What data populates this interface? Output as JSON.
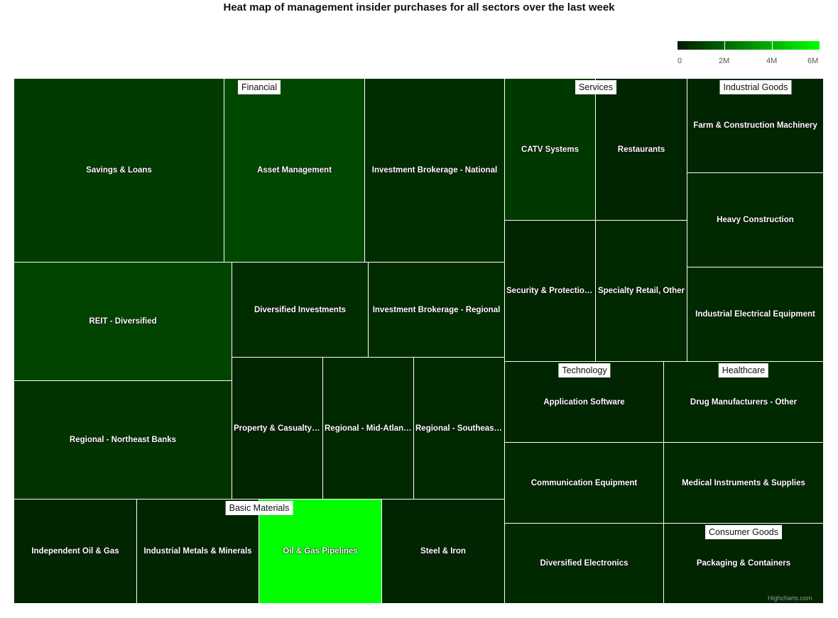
{
  "chart_data": {
    "type": "heatmap",
    "title": "Heat map of management insider purchases for all sectors over the last week",
    "color_axis": {
      "min": 0,
      "max": 6000000,
      "min_color": "#001a00",
      "max_color": "#00ff00",
      "tick_labels": [
        "0",
        "2M",
        "4M",
        "6M"
      ],
      "tick_values": [
        0,
        2000000,
        4000000,
        6000000
      ]
    },
    "sectors": [
      {
        "name": "Financial",
        "children": [
          {
            "name": "Savings & Loans",
            "value": 900000
          },
          {
            "name": "Asset Management",
            "value": 1200000
          },
          {
            "name": "Investment Brokerage - National",
            "value": 500000
          },
          {
            "name": "REIT - Diversified",
            "value": 1100000
          },
          {
            "name": "Diversified Investments",
            "value": 500000
          },
          {
            "name": "Investment Brokerage - Regional",
            "value": 500000
          },
          {
            "name": "Regional - Northeast Banks",
            "value": 700000
          },
          {
            "name": "Property & Casualty Insurance",
            "value": 300000
          },
          {
            "name": "Regional - Mid-Atlantic Banks",
            "value": 400000
          },
          {
            "name": "Regional - Southeast Banks",
            "value": 400000
          }
        ]
      },
      {
        "name": "Basic Materials",
        "children": [
          {
            "name": "Independent Oil & Gas",
            "value": 300000
          },
          {
            "name": "Industrial Metals & Minerals",
            "value": 300000
          },
          {
            "name": "Oil & Gas Pipelines",
            "value": 6000000
          },
          {
            "name": "Steel & Iron",
            "value": 300000
          }
        ]
      },
      {
        "name": "Services",
        "children": [
          {
            "name": "CATV Systems",
            "value": 800000
          },
          {
            "name": "Restaurants",
            "value": 300000
          },
          {
            "name": "Security & Protection Services",
            "value": 300000
          },
          {
            "name": "Specialty Retail, Other",
            "value": 400000
          }
        ]
      },
      {
        "name": "Industrial Goods",
        "children": [
          {
            "name": "Farm & Construction Machinery",
            "value": 300000
          },
          {
            "name": "Heavy Construction",
            "value": 400000
          },
          {
            "name": "Industrial Electrical Equipment",
            "value": 400000
          }
        ]
      },
      {
        "name": "Technology",
        "children": [
          {
            "name": "Application Software",
            "value": 300000
          },
          {
            "name": "Communication Equipment",
            "value": 400000
          },
          {
            "name": "Diversified Electronics",
            "value": 400000
          }
        ]
      },
      {
        "name": "Healthcare",
        "children": [
          {
            "name": "Drug Manufacturers - Other",
            "value": 400000
          },
          {
            "name": "Medical Instruments & Supplies",
            "value": 400000
          }
        ]
      },
      {
        "name": "Consumer Goods",
        "children": [
          {
            "name": "Packaging & Containers",
            "value": 300000
          }
        ]
      }
    ]
  },
  "credits": "Highcharts.com"
}
